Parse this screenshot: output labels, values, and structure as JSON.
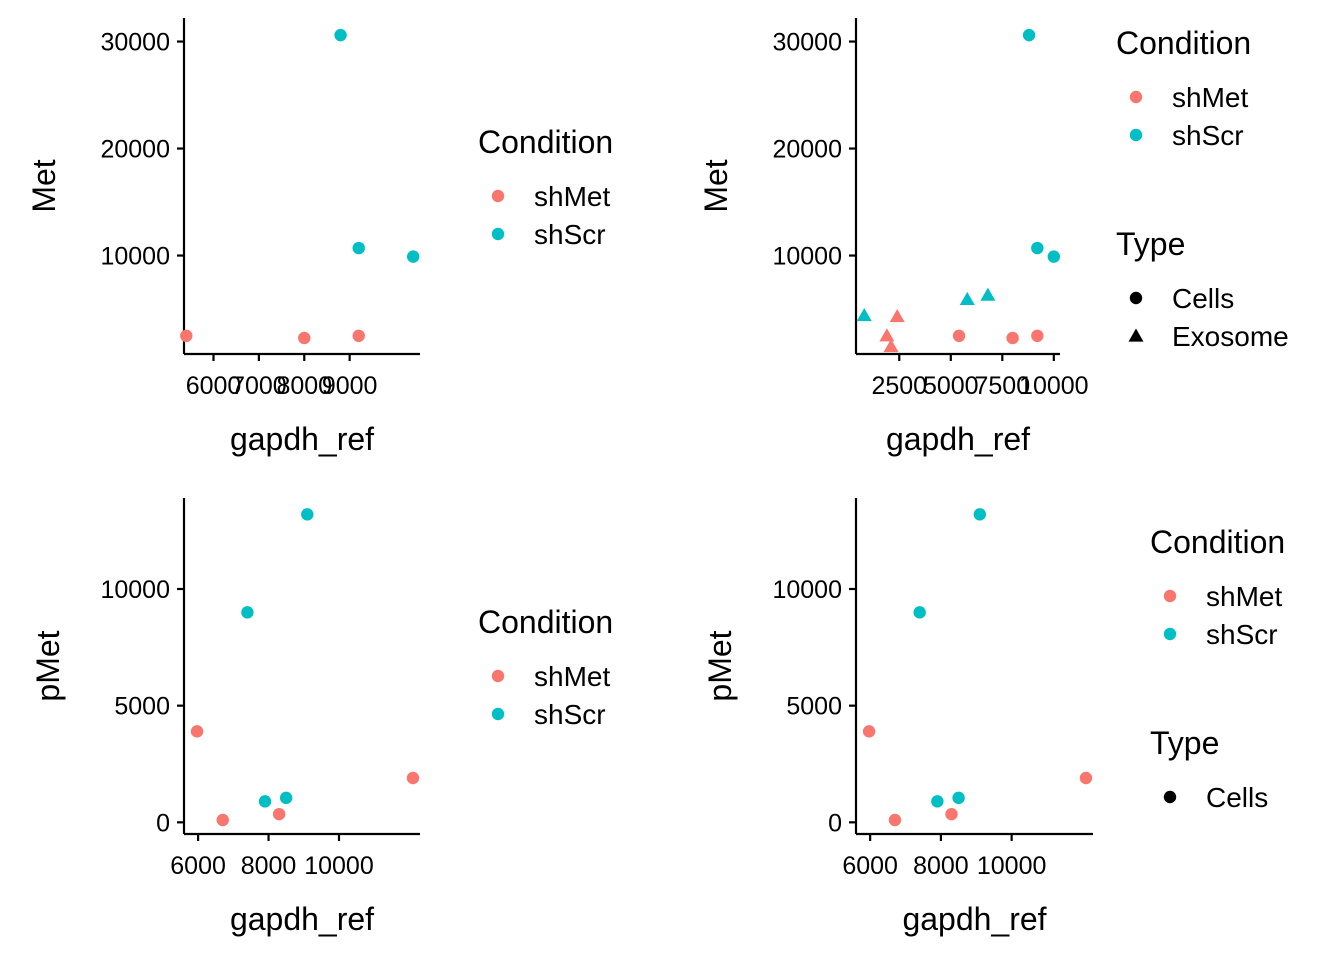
{
  "colors": {
    "shMet": "#F8766D",
    "shScr": "#00BFC4",
    "axis": "#000000"
  },
  "chart_data": [
    {
      "type": "scatter",
      "panel": "top-left",
      "xlabel": "gapdh_ref",
      "ylabel": "Met",
      "xlim": [
        5350,
        10550
      ],
      "ylim": [
        800,
        32200
      ],
      "xticks": [
        6000,
        7000,
        8000,
        9000
      ],
      "xtick_labels": [
        "6000",
        "7000",
        "8000",
        "9000"
      ],
      "yticks": [
        10000,
        20000,
        30000
      ],
      "ytick_labels": [
        "10000",
        "20000",
        "30000"
      ],
      "legend": {
        "placement": "right",
        "groups": [
          {
            "title": "Condition",
            "entries": [
              {
                "label": "shMet",
                "color": "#F8766D",
                "shape": "circle"
              },
              {
                "label": "shScr",
                "color": "#00BFC4",
                "shape": "circle"
              }
            ]
          }
        ]
      },
      "series": [
        {
          "name": "shMet",
          "color": "#F8766D",
          "points": [
            {
              "x": 5400,
              "y": 2500,
              "shape": "circle"
            },
            {
              "x": 8000,
              "y": 2300,
              "shape": "circle"
            },
            {
              "x": 9200,
              "y": 2500,
              "shape": "circle"
            }
          ]
        },
        {
          "name": "shScr",
          "color": "#00BFC4",
          "points": [
            {
              "x": 8800,
              "y": 30600,
              "shape": "circle"
            },
            {
              "x": 9200,
              "y": 10700,
              "shape": "circle"
            },
            {
              "x": 10400,
              "y": 9900,
              "shape": "circle"
            }
          ]
        }
      ]
    },
    {
      "type": "scatter",
      "panel": "top-right",
      "xlabel": "gapdh_ref",
      "ylabel": "Met",
      "xlim": [
        400,
        10300
      ],
      "ylim": [
        800,
        32200
      ],
      "xticks": [
        2500,
        5000,
        7500,
        10000
      ],
      "xtick_labels": [
        "2500",
        "5000",
        "7500",
        "10000"
      ],
      "yticks": [
        10000,
        20000,
        30000
      ],
      "ytick_labels": [
        "10000",
        "20000",
        "30000"
      ],
      "legend": {
        "placement": "right",
        "groups": [
          {
            "title": "Condition",
            "entries": [
              {
                "label": "shMet",
                "color": "#F8766D",
                "shape": "circle"
              },
              {
                "label": "shScr",
                "color": "#00BFC4",
                "shape": "circle"
              }
            ]
          },
          {
            "title": "Type",
            "entries": [
              {
                "label": "Cells",
                "color": "#000000",
                "shape": "circle"
              },
              {
                "label": "Exosome",
                "color": "#000000",
                "shape": "triangle"
              }
            ]
          }
        ]
      },
      "series": [
        {
          "name": "shMet",
          "color": "#F8766D",
          "points": [
            {
              "x": 5400,
              "y": 2500,
              "shape": "circle"
            },
            {
              "x": 8000,
              "y": 2300,
              "shape": "circle"
            },
            {
              "x": 9200,
              "y": 2500,
              "shape": "circle"
            },
            {
              "x": 1900,
              "y": 2500,
              "shape": "triangle"
            },
            {
              "x": 2400,
              "y": 4300,
              "shape": "triangle"
            },
            {
              "x": 2100,
              "y": 1500,
              "shape": "triangle"
            }
          ]
        },
        {
          "name": "shScr",
          "color": "#00BFC4",
          "points": [
            {
              "x": 8800,
              "y": 30600,
              "shape": "circle"
            },
            {
              "x": 9200,
              "y": 10700,
              "shape": "circle"
            },
            {
              "x": 10000,
              "y": 9900,
              "shape": "circle"
            },
            {
              "x": 800,
              "y": 4400,
              "shape": "triangle"
            },
            {
              "x": 5800,
              "y": 5900,
              "shape": "triangle"
            },
            {
              "x": 6800,
              "y": 6300,
              "shape": "triangle"
            }
          ]
        }
      ]
    },
    {
      "type": "scatter",
      "panel": "bottom-left",
      "xlabel": "gapdh_ref",
      "ylabel": "pMet",
      "xlim": [
        5600,
        12300
      ],
      "ylim": [
        -500,
        13900
      ],
      "xticks": [
        6000,
        8000,
        10000
      ],
      "xtick_labels": [
        "6000",
        "8000",
        "10000"
      ],
      "yticks": [
        0,
        5000,
        10000
      ],
      "ytick_labels": [
        "0",
        "5000",
        "10000"
      ],
      "legend": {
        "placement": "right",
        "groups": [
          {
            "title": "Condition",
            "entries": [
              {
                "label": "shMet",
                "color": "#F8766D",
                "shape": "circle"
              },
              {
                "label": "shScr",
                "color": "#00BFC4",
                "shape": "circle"
              }
            ]
          }
        ]
      },
      "series": [
        {
          "name": "shMet",
          "color": "#F8766D",
          "points": [
            {
              "x": 5970,
              "y": 3900,
              "shape": "circle"
            },
            {
              "x": 6700,
              "y": 100,
              "shape": "circle"
            },
            {
              "x": 8300,
              "y": 350,
              "shape": "circle"
            },
            {
              "x": 12100,
              "y": 1900,
              "shape": "circle"
            }
          ]
        },
        {
          "name": "shScr",
          "color": "#00BFC4",
          "points": [
            {
              "x": 7400,
              "y": 9000,
              "shape": "circle"
            },
            {
              "x": 7900,
              "y": 900,
              "shape": "circle"
            },
            {
              "x": 8500,
              "y": 1050,
              "shape": "circle"
            },
            {
              "x": 9100,
              "y": 13200,
              "shape": "circle"
            }
          ]
        }
      ]
    },
    {
      "type": "scatter",
      "panel": "bottom-right",
      "xlabel": "gapdh_ref",
      "ylabel": "pMet",
      "xlim": [
        5600,
        12300
      ],
      "ylim": [
        -500,
        13900
      ],
      "xticks": [
        6000,
        8000,
        10000
      ],
      "xtick_labels": [
        "6000",
        "8000",
        "10000"
      ],
      "yticks": [
        0,
        5000,
        10000
      ],
      "ytick_labels": [
        "0",
        "5000",
        "10000"
      ],
      "legend": {
        "placement": "right",
        "groups": [
          {
            "title": "Condition",
            "entries": [
              {
                "label": "shMet",
                "color": "#F8766D",
                "shape": "circle"
              },
              {
                "label": "shScr",
                "color": "#00BFC4",
                "shape": "circle"
              }
            ]
          },
          {
            "title": "Type",
            "entries": [
              {
                "label": "Cells",
                "color": "#000000",
                "shape": "circle"
              }
            ]
          }
        ]
      },
      "series": [
        {
          "name": "shMet",
          "color": "#F8766D",
          "points": [
            {
              "x": 5970,
              "y": 3900,
              "shape": "circle"
            },
            {
              "x": 6700,
              "y": 100,
              "shape": "circle"
            },
            {
              "x": 8300,
              "y": 350,
              "shape": "circle"
            },
            {
              "x": 12100,
              "y": 1900,
              "shape": "circle"
            }
          ]
        },
        {
          "name": "shScr",
          "color": "#00BFC4",
          "points": [
            {
              "x": 7400,
              "y": 9000,
              "shape": "circle"
            },
            {
              "x": 7900,
              "y": 900,
              "shape": "circle"
            },
            {
              "x": 8500,
              "y": 1050,
              "shape": "circle"
            },
            {
              "x": 9100,
              "y": 13200,
              "shape": "circle"
            }
          ]
        }
      ]
    }
  ]
}
